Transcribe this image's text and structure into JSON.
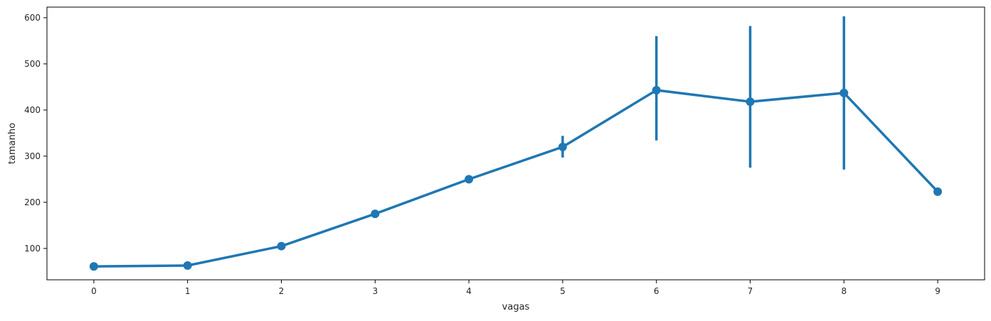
{
  "chart_data": {
    "type": "line",
    "xlabel": "vagas",
    "ylabel": "tamanho",
    "categories": [
      "0",
      "1",
      "2",
      "3",
      "4",
      "5",
      "6",
      "7",
      "8",
      "9"
    ],
    "x": [
      0,
      1,
      2,
      3,
      4,
      5,
      6,
      7,
      8,
      9
    ],
    "series": [
      {
        "values": [
          61,
          63,
          105,
          175,
          250,
          320,
          443,
          418,
          437,
          223
        ],
        "ci_low": [
          59,
          61,
          102,
          172,
          244,
          297,
          334,
          275,
          271,
          223
        ],
        "ci_high": [
          63,
          65,
          108,
          178,
          256,
          344,
          560,
          582,
          603,
          223
        ],
        "color": "#1f77b4"
      }
    ],
    "yticks": [
      100,
      200,
      300,
      400,
      500,
      600
    ],
    "ylim": [
      32,
      623
    ],
    "xlim": [
      -0.5,
      9.5
    ],
    "grid": false,
    "legend": "none"
  }
}
